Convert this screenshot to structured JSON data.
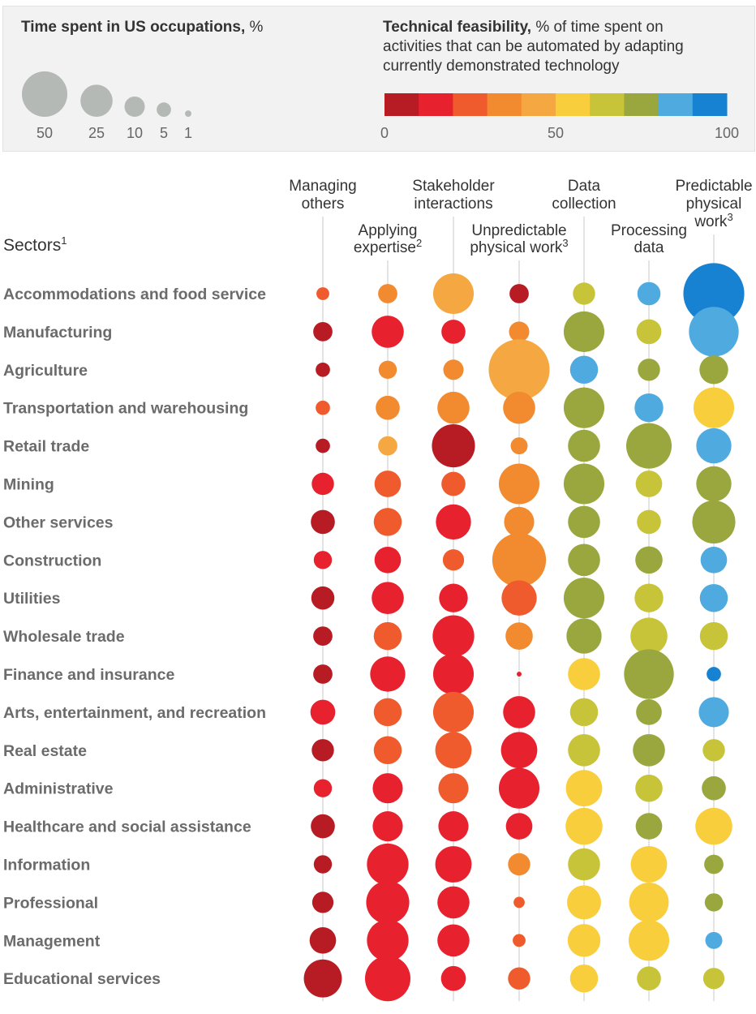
{
  "legend": {
    "size_title": "Time spent in US occupations,",
    "size_unit": "%",
    "size_values": [
      50,
      25,
      10,
      5,
      1
    ],
    "color_title_bold": "Technical feasibility,",
    "color_title_rest_1": "% of time spent on",
    "color_title_rest_2": "activities that can be automated by adapting",
    "color_title_rest_3": "currently demonstrated technology",
    "color_ticks": [
      "0",
      "50",
      "100"
    ],
    "color_scale": [
      "#b71c24",
      "#e8212e",
      "#ef5b2c",
      "#f28a30",
      "#f5a842",
      "#f9ce3c",
      "#c7c43a",
      "#9aa63e",
      "#4faae0",
      "#1782d2"
    ]
  },
  "chart_data": {
    "type": "scatter",
    "encoding": "bubble size = time spent in US occupations (%); bubble color = technical feasibility (%)",
    "row_header": "Sectors",
    "row_header_sup": "1",
    "columns": [
      {
        "label": [
          "Managing",
          "others"
        ],
        "sup": ""
      },
      {
        "label": [
          "Applying",
          "expertise"
        ],
        "sup": "2"
      },
      {
        "label": [
          "Stakeholder",
          "interactions"
        ],
        "sup": ""
      },
      {
        "label": [
          "Unpredictable",
          "physical work"
        ],
        "sup": "3"
      },
      {
        "label": [
          "Data",
          "collection"
        ],
        "sup": ""
      },
      {
        "label": [
          "Processing",
          "data"
        ],
        "sup": ""
      },
      {
        "label": [
          "Predictable",
          "physical",
          "work"
        ],
        "sup": "3"
      }
    ],
    "rows": [
      {
        "sector": "Accommodations and food service",
        "size": [
          4,
          9,
          40,
          9,
          12,
          13,
          90
        ],
        "feas": [
          25,
          30,
          42,
          7,
          68,
          83,
          97
        ]
      },
      {
        "sector": "Manufacturing",
        "size": [
          9,
          25,
          14,
          10,
          40,
          15,
          60
        ],
        "feas": [
          7,
          15,
          15,
          30,
          75,
          65,
          85
        ]
      },
      {
        "sector": "Agriculture",
        "size": [
          5,
          8,
          10,
          90,
          19,
          12,
          20
        ],
        "feas": [
          7,
          30,
          30,
          42,
          85,
          75,
          75
        ]
      },
      {
        "sector": "Transportation and warehousing",
        "size": [
          5,
          14,
          25,
          25,
          40,
          20,
          40
        ],
        "feas": [
          25,
          30,
          32,
          30,
          75,
          85,
          55
        ]
      },
      {
        "sector": "Retail trade",
        "size": [
          5,
          9,
          45,
          7,
          25,
          50,
          30
        ],
        "feas": [
          7,
          42,
          7,
          30,
          75,
          75,
          85
        ]
      },
      {
        "sector": "Mining",
        "size": [
          12,
          17,
          14,
          40,
          40,
          17,
          30
        ],
        "feas": [
          15,
          28,
          28,
          30,
          75,
          65,
          75
        ]
      },
      {
        "sector": "Other services",
        "size": [
          14,
          19,
          30,
          22,
          25,
          14,
          45
        ],
        "feas": [
          7,
          28,
          15,
          30,
          75,
          65,
          75
        ]
      },
      {
        "sector": "Construction",
        "size": [
          8,
          17,
          11,
          70,
          25,
          18,
          17
        ],
        "feas": [
          15,
          15,
          28,
          30,
          75,
          75,
          85
        ]
      },
      {
        "sector": "Utilities",
        "size": [
          13,
          25,
          20,
          30,
          40,
          20,
          19
        ],
        "feas": [
          7,
          15,
          15,
          28,
          75,
          65,
          85
        ]
      },
      {
        "sector": "Wholesale trade",
        "size": [
          9,
          19,
          42,
          18,
          30,
          33,
          19
        ],
        "feas": [
          7,
          28,
          15,
          30,
          75,
          65,
          65
        ]
      },
      {
        "sector": "Finance and insurance",
        "size": [
          9,
          30,
          40,
          0.5,
          25,
          60,
          5
        ],
        "feas": [
          7,
          15,
          15,
          15,
          55,
          75,
          97
        ]
      },
      {
        "sector": "Arts, entertainment, and recreation",
        "size": [
          15,
          19,
          40,
          25,
          19,
          16,
          22
        ],
        "feas": [
          15,
          28,
          28,
          15,
          65,
          75,
          85
        ]
      },
      {
        "sector": "Real estate",
        "size": [
          12,
          19,
          32,
          32,
          25,
          25,
          12
        ],
        "feas": [
          7,
          28,
          28,
          15,
          65,
          75,
          65
        ]
      },
      {
        "sector": "Administrative",
        "size": [
          8,
          22,
          22,
          40,
          32,
          18,
          14
        ],
        "feas": [
          15,
          15,
          28,
          15,
          55,
          65,
          75
        ]
      },
      {
        "sector": "Healthcare and social assistance",
        "size": [
          14,
          22,
          22,
          17,
          33,
          17,
          33
        ],
        "feas": [
          7,
          15,
          15,
          15,
          55,
          75,
          55
        ]
      },
      {
        "sector": "Information",
        "size": [
          8,
          42,
          32,
          12,
          25,
          32,
          9
        ],
        "feas": [
          7,
          15,
          15,
          30,
          65,
          55,
          75
        ]
      },
      {
        "sector": "Professional",
        "size": [
          11,
          45,
          25,
          3,
          28,
          38,
          8
        ],
        "feas": [
          7,
          15,
          15,
          28,
          55,
          55,
          75
        ]
      },
      {
        "sector": "Management",
        "size": [
          17,
          42,
          25,
          4,
          26,
          40,
          7
        ],
        "feas": [
          7,
          15,
          15,
          28,
          55,
          55,
          85
        ]
      },
      {
        "sector": "Educational services",
        "size": [
          35,
          50,
          15,
          12,
          19,
          14,
          11
        ],
        "feas": [
          7,
          15,
          15,
          28,
          55,
          65,
          65
        ]
      }
    ]
  }
}
